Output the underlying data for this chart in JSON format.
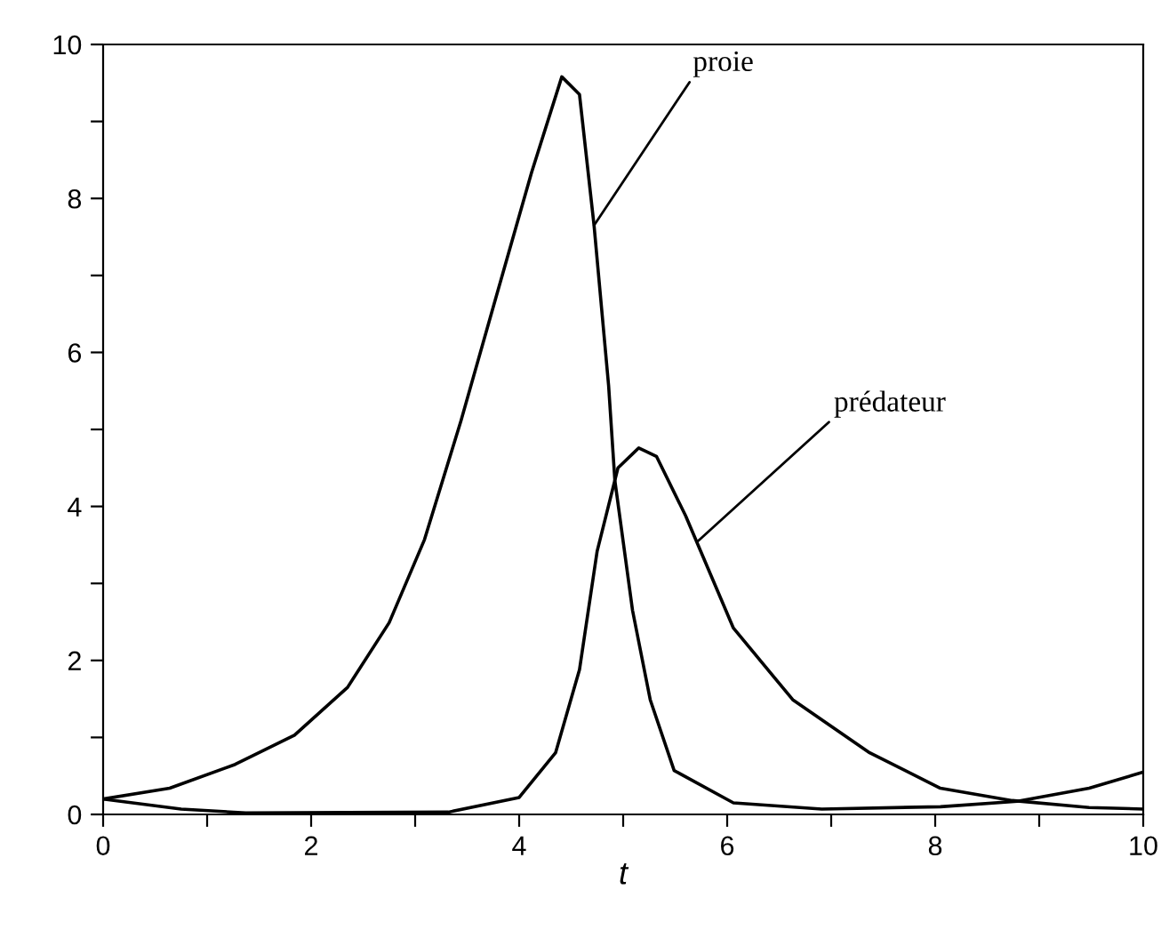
{
  "chart_data": {
    "type": "line",
    "xlabel": "t",
    "xlim": [
      0,
      10
    ],
    "ylim": [
      0,
      10
    ],
    "xticks": [
      0,
      {
        "value": 1,
        "label": null
      },
      2,
      {
        "value": 3,
        "label": null
      },
      4,
      {
        "value": 5,
        "label": null
      },
      6,
      {
        "value": 7,
        "label": null
      },
      8,
      {
        "value": 9,
        "label": null
      },
      10
    ],
    "yticks": [
      0,
      {
        "value": 1,
        "label": null
      },
      2,
      {
        "value": 3,
        "label": null
      },
      4,
      {
        "value": 5,
        "label": null
      },
      6,
      {
        "value": 7,
        "label": null
      },
      8,
      {
        "value": 9,
        "label": null
      },
      10
    ],
    "grid": false,
    "legend": false,
    "marker": "none",
    "line_style": "solid",
    "series": [
      {
        "color": "#000000",
        "x": [
          0,
          0.64,
          1.27,
          1.84,
          2.35,
          2.75,
          3.09,
          3.44,
          3.78,
          4.12,
          4.41,
          4.58,
          4.72,
          4.86,
          4.92,
          5.09,
          5.26,
          5.49,
          6.06,
          6.91,
          8.05,
          8.79,
          9.48,
          10
        ],
        "values": [
          0.2,
          0.34,
          0.65,
          1.03,
          1.65,
          2.49,
          3.57,
          5.11,
          6.73,
          8.34,
          9.58,
          9.35,
          7.65,
          5.57,
          4.34,
          2.65,
          1.49,
          0.57,
          0.15,
          0.07,
          0.1,
          0.17,
          0.34,
          0.55
        ]
      },
      {
        "color": "#000000",
        "x": [
          0,
          0.75,
          1.37,
          3.32,
          4.0,
          4.35,
          4.58,
          4.75,
          4.95,
          5.15,
          5.32,
          5.6,
          6.06,
          6.63,
          7.37,
          8.05,
          8.74,
          9.48,
          10
        ],
        "values": [
          0.2,
          0.07,
          0.02,
          0.03,
          0.22,
          0.8,
          1.88,
          3.42,
          4.5,
          4.76,
          4.65,
          3.88,
          2.42,
          1.49,
          0.8,
          0.34,
          0.18,
          0.09,
          0.07
        ]
      }
    ],
    "annotations": [
      {
        "text": "proie",
        "x": 4.72,
        "y": 7.65
      },
      {
        "text": "prédateur",
        "x": 5.72,
        "y": 3.55
      }
    ]
  }
}
